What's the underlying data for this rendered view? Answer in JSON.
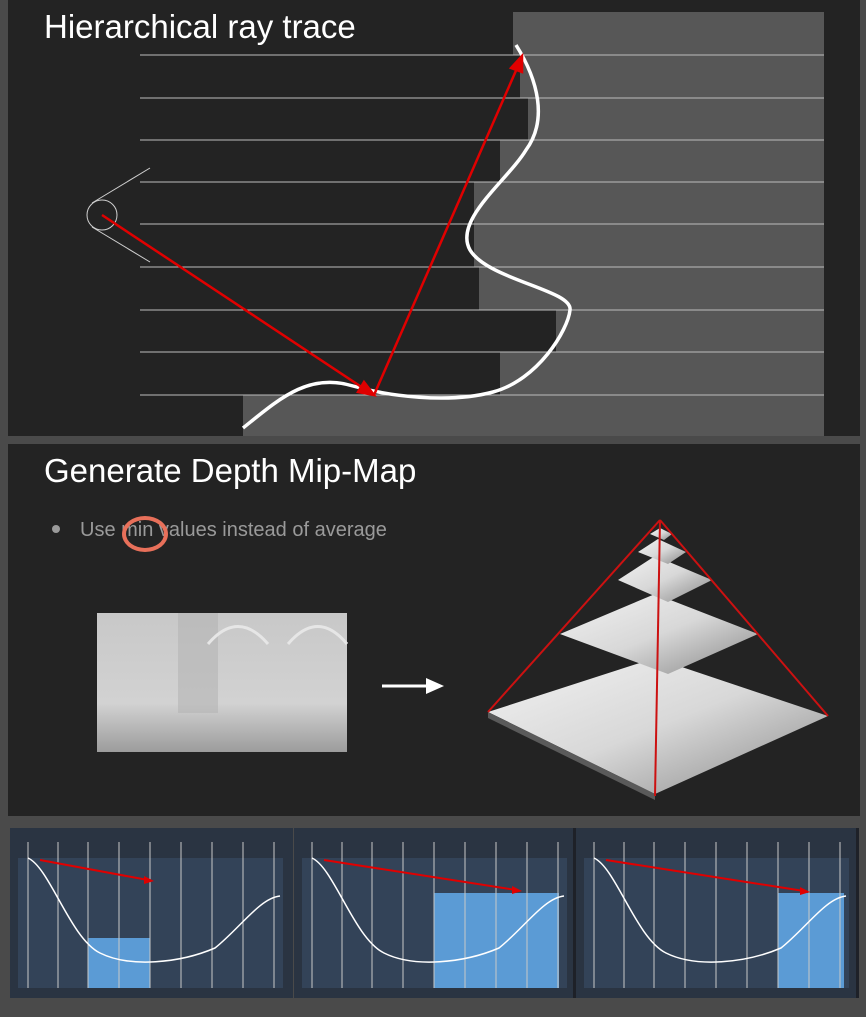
{
  "slide1": {
    "title": "Hierarchical ray trace"
  },
  "slide2": {
    "title": "Generate Depth Mip-Map",
    "bullet_prefix": "Use ",
    "bullet_highlight": "min",
    "bullet_suffix": " values instead of average"
  },
  "colors": {
    "slide_bg": "#232323",
    "ray": "#e00000",
    "surface": "#ffffff",
    "highlight_circle": "#e8705a",
    "cell_fill": "#5b9bd5"
  }
}
